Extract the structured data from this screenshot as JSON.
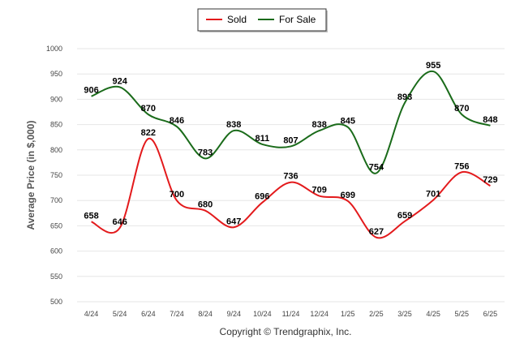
{
  "chart_data": {
    "type": "line",
    "categories": [
      "4/24",
      "5/24",
      "6/24",
      "7/24",
      "8/24",
      "9/24",
      "10/24",
      "11/24",
      "12/24",
      "1/25",
      "2/25",
      "3/25",
      "4/25",
      "5/25",
      "6/25"
    ],
    "series": [
      {
        "name": "Sold",
        "color": "#e31a1c",
        "values": [
          658,
          646,
          822,
          700,
          680,
          647,
          696,
          736,
          709,
          699,
          627,
          659,
          701,
          756,
          729
        ]
      },
      {
        "name": "For Sale",
        "color": "#1a6b1a",
        "values": [
          906,
          924,
          870,
          846,
          783,
          838,
          811,
          807,
          838,
          845,
          754,
          893,
          955,
          870,
          848
        ]
      }
    ],
    "ylabel": "Average Price (in $,000)",
    "xlabel": "",
    "ylim": [
      500,
      1000
    ],
    "yticks": [
      500,
      550,
      600,
      650,
      700,
      750,
      800,
      850,
      900,
      950,
      1000
    ],
    "grid": true,
    "legend_position": "top-center",
    "footer": "Copyright © Trendgraphix, Inc."
  }
}
